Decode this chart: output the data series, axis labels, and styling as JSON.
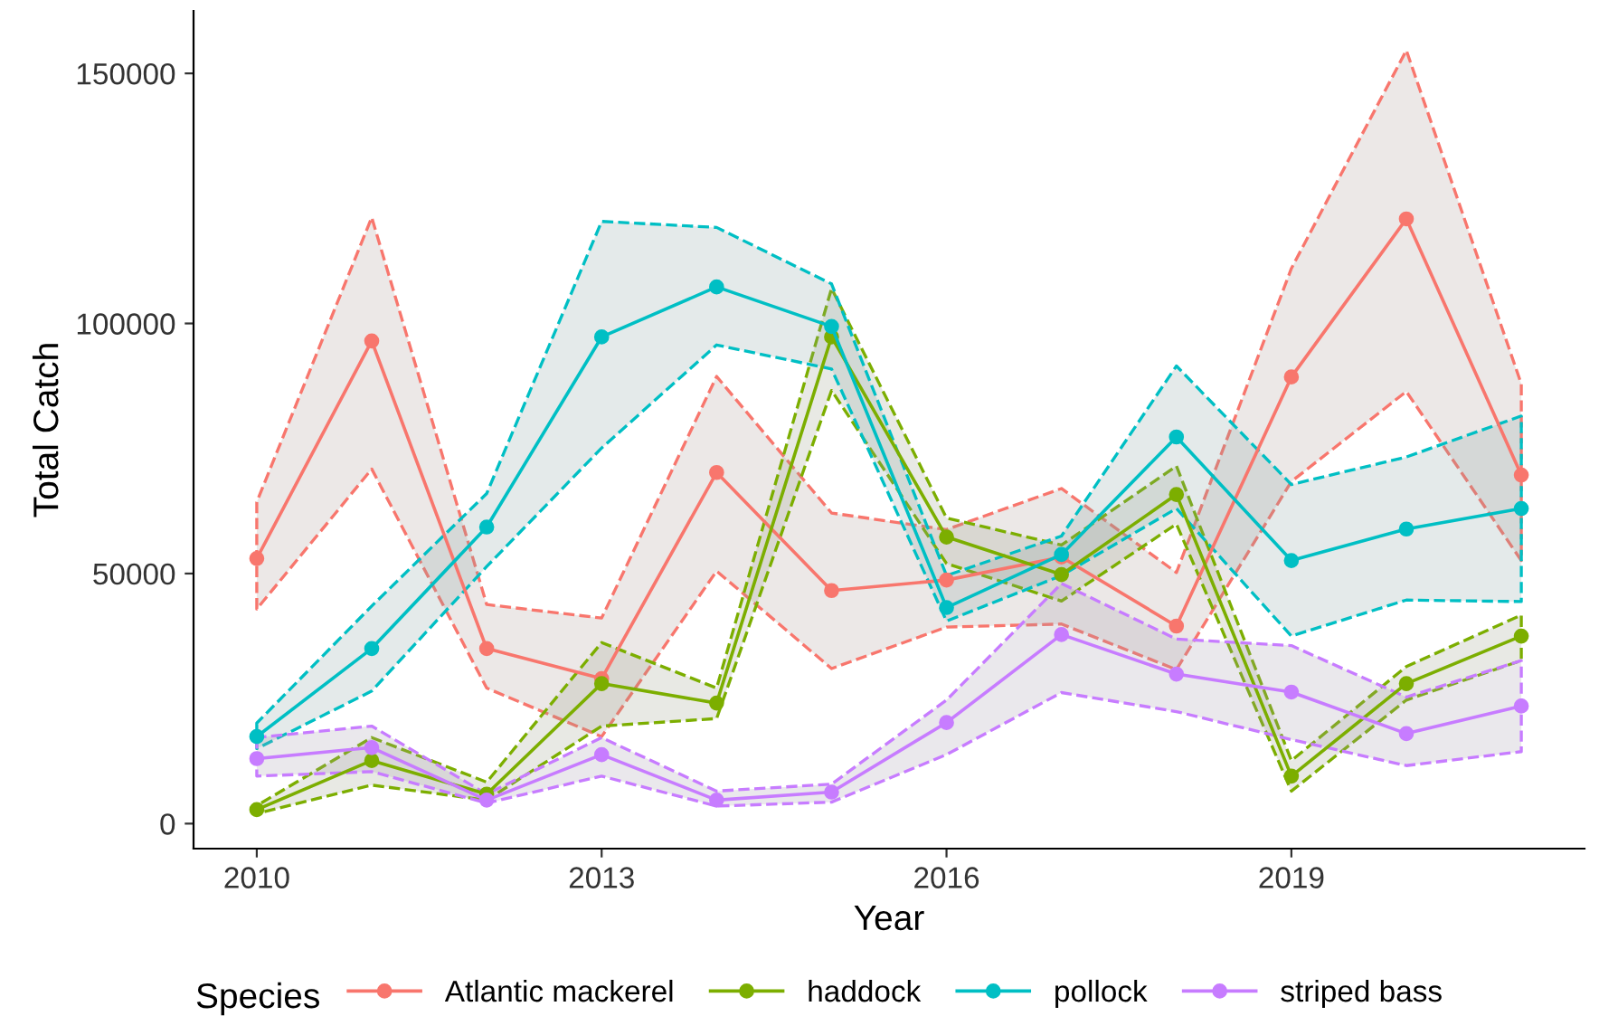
{
  "chart_data": {
    "type": "line",
    "xlabel": "Year",
    "ylabel": "Total Catch",
    "legend_title": "Species",
    "x": [
      2010,
      2011,
      2012,
      2013,
      2014,
      2015,
      2016,
      2017,
      2018,
      2019,
      2020,
      2021
    ],
    "xlim": [
      2009.45,
      2021.55
    ],
    "xticks": [
      2010,
      2013,
      2016,
      2019
    ],
    "ylim": [
      -5000,
      162500
    ],
    "yticks": [
      0,
      50000,
      100000,
      150000
    ],
    "grid": false,
    "legend": "bottom",
    "marker": "circle",
    "line_style": "solid",
    "series": [
      {
        "name": "Atlantic mackerel",
        "color": "#f8766d",
        "values": [
          53000,
          96500,
          35000,
          29000,
          70200,
          46600,
          48700,
          53300,
          39500,
          89300,
          120900,
          69700
        ],
        "lower": [
          42900,
          70900,
          27100,
          17400,
          50500,
          31000,
          39300,
          39900,
          30800,
          68400,
          86400,
          52600
        ],
        "upper": [
          64300,
          121200,
          43800,
          41100,
          89400,
          62100,
          58800,
          67000,
          50200,
          111000,
          154600,
          87900
        ]
      },
      {
        "name": "haddock",
        "color": "#7cae00",
        "values": [
          2800,
          12600,
          5900,
          28000,
          24100,
          97300,
          57300,
          49800,
          65800,
          9500,
          28000,
          37500
        ],
        "lower": [
          2000,
          7700,
          4700,
          19500,
          21000,
          86600,
          52000,
          44500,
          59900,
          6500,
          24700,
          32600
        ],
        "upper": [
          3600,
          17200,
          8300,
          36200,
          27100,
          107000,
          61100,
          55700,
          71500,
          12600,
          31400,
          41700
        ]
      },
      {
        "name": "pollock",
        "color": "#00bfc4",
        "values": [
          17400,
          35000,
          59300,
          97300,
          107300,
          99400,
          43200,
          53800,
          77300,
          52600,
          58900,
          63000
        ],
        "lower": [
          15000,
          26500,
          51400,
          75100,
          95700,
          90900,
          40500,
          49600,
          63000,
          37500,
          44700,
          44400
        ],
        "upper": [
          20100,
          43500,
          66000,
          120400,
          119200,
          107900,
          49600,
          57500,
          91500,
          67800,
          73300,
          81500
        ]
      },
      {
        "name": "striped bass",
        "color": "#c77cff",
        "values": [
          13000,
          15200,
          4700,
          13800,
          4700,
          6300,
          20200,
          37800,
          29900,
          26300,
          18000,
          23500
        ],
        "lower": [
          9500,
          10400,
          4100,
          9500,
          3500,
          4300,
          13800,
          26200,
          22400,
          16800,
          11600,
          14400
        ],
        "upper": [
          17200,
          19500,
          5900,
          17200,
          6500,
          7900,
          24700,
          48000,
          36900,
          35600,
          25300,
          32600
        ]
      }
    ]
  }
}
